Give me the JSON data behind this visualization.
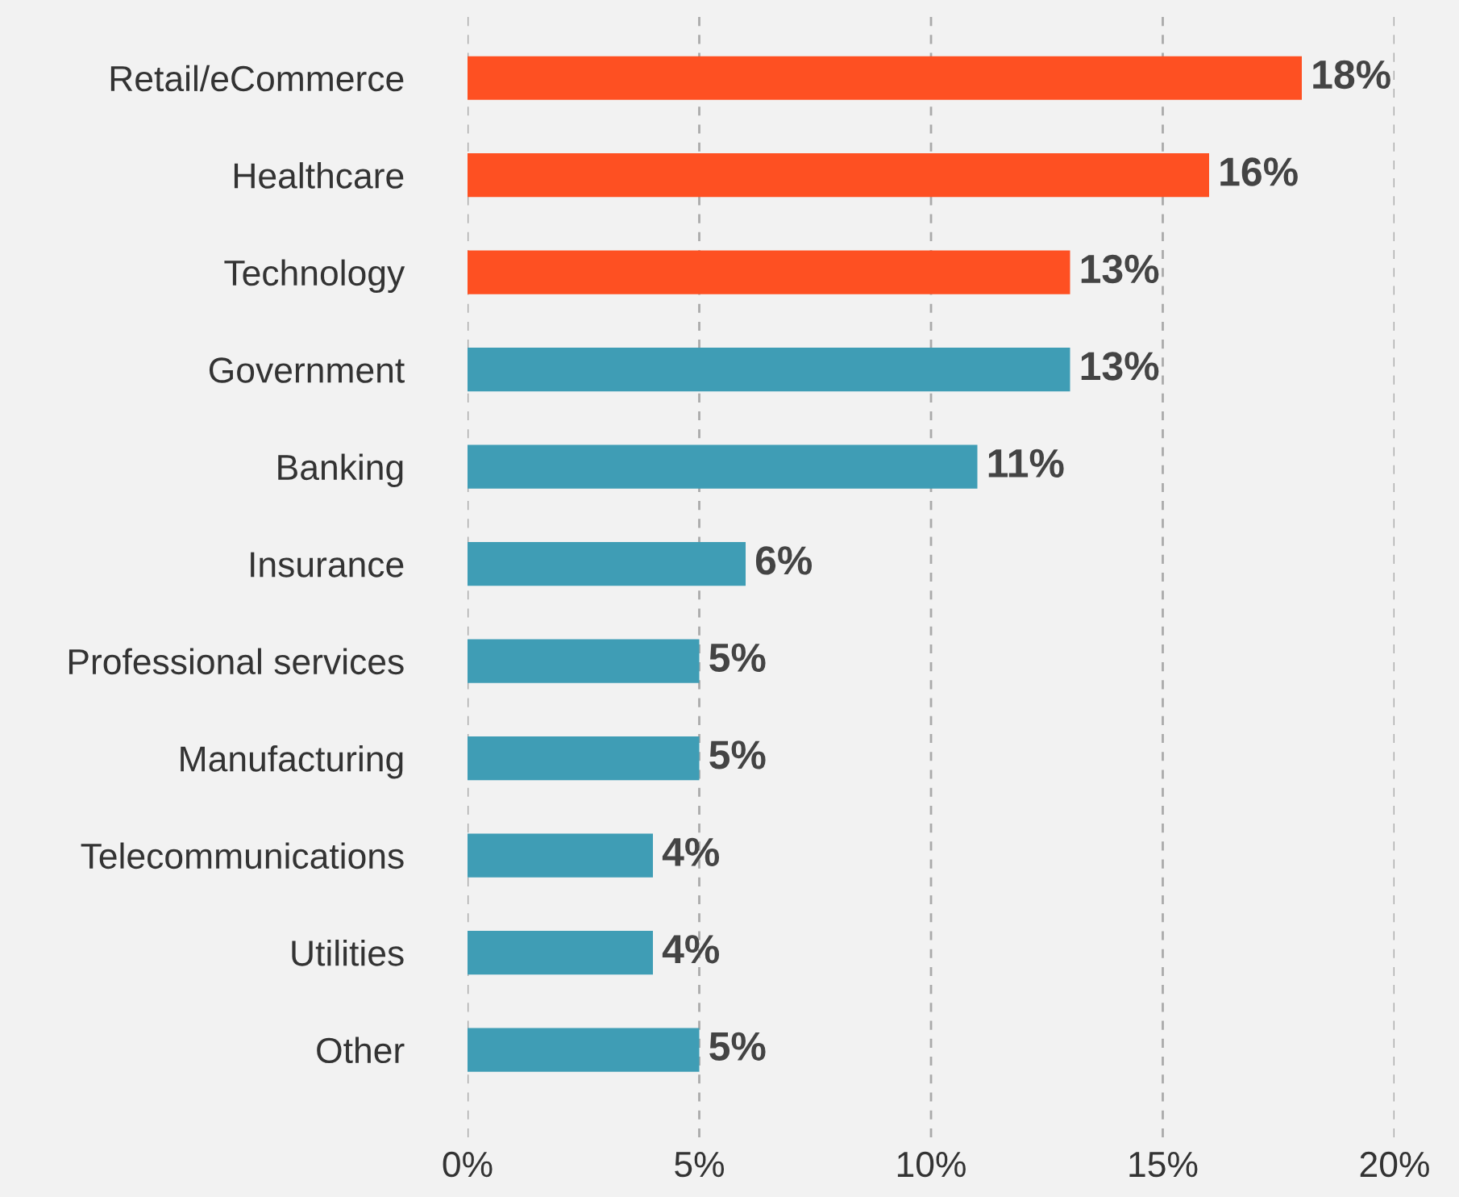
{
  "chart_data": {
    "type": "bar",
    "orientation": "horizontal",
    "categories": [
      "Retail/eCommerce",
      "Healthcare",
      "Technology",
      "Government",
      "Banking",
      "Insurance",
      "Professional services",
      "Manufacturing",
      "Telecommunications",
      "Utilities",
      "Other"
    ],
    "values": [
      18,
      16,
      13,
      13,
      11,
      6,
      5,
      5,
      4,
      4,
      5
    ],
    "colors": [
      "#fe5022",
      "#fe5022",
      "#fe5022",
      "#3f9db5",
      "#3f9db5",
      "#3f9db5",
      "#3f9db5",
      "#3f9db5",
      "#3f9db5",
      "#3f9db5",
      "#3f9db5"
    ],
    "value_labels": [
      "18%",
      "16%",
      "13%",
      "13%",
      "11%",
      "6%",
      "5%",
      "5%",
      "4%",
      "4%",
      "5%"
    ],
    "xlim": [
      0,
      20
    ],
    "xticks": [
      {
        "value": 0,
        "label": "0%"
      },
      {
        "value": 5,
        "label": "5%"
      },
      {
        "value": 10,
        "label": "10%"
      },
      {
        "value": 15,
        "label": "15%"
      },
      {
        "value": 20,
        "label": "20%"
      }
    ],
    "grid": "x"
  }
}
